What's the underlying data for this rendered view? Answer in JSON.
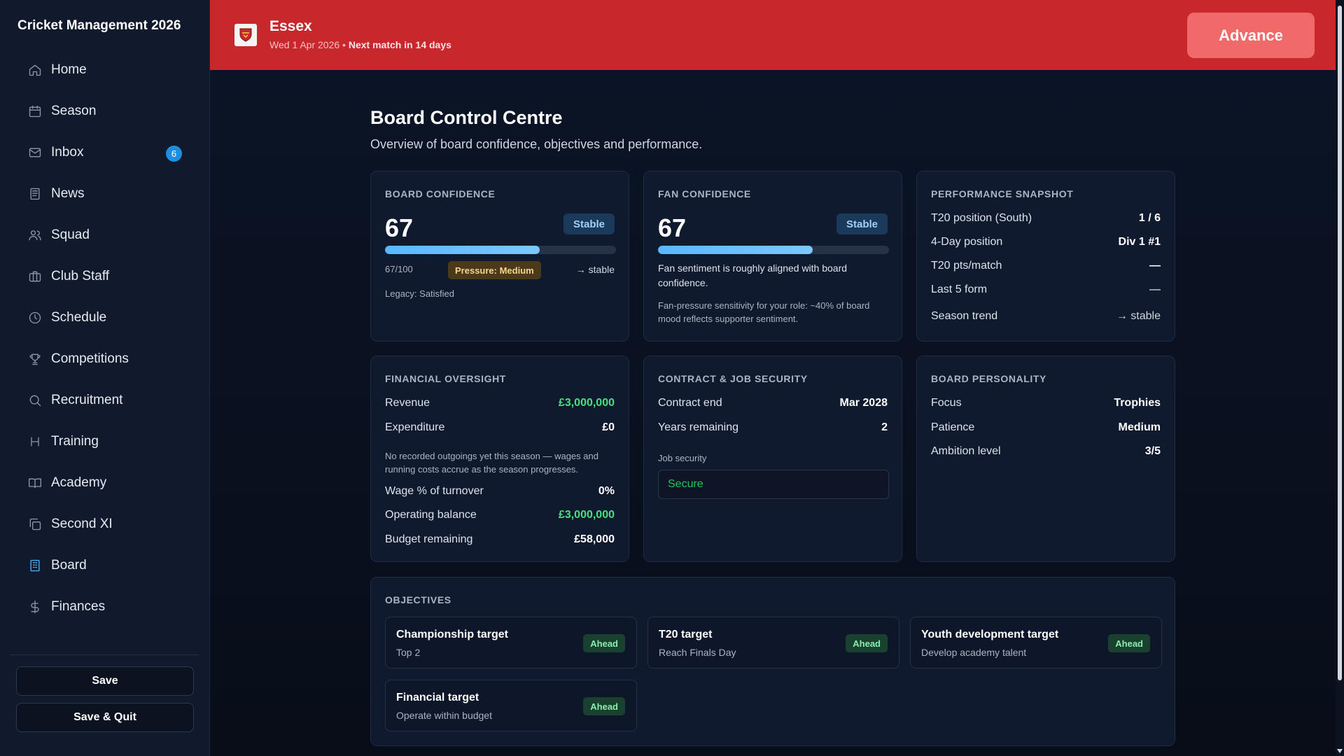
{
  "app": {
    "title": "Cricket Management 2026"
  },
  "sidebar": {
    "items": [
      {
        "label": "Home",
        "icon": "home-icon"
      },
      {
        "label": "Season",
        "icon": "calendar-icon"
      },
      {
        "label": "Inbox",
        "icon": "mail-icon",
        "badge": "6"
      },
      {
        "label": "News",
        "icon": "newspaper-icon"
      },
      {
        "label": "Squad",
        "icon": "users-icon"
      },
      {
        "label": "Club Staff",
        "icon": "briefcase-icon"
      },
      {
        "label": "Schedule",
        "icon": "clock-icon"
      },
      {
        "label": "Competitions",
        "icon": "trophy-icon"
      },
      {
        "label": "Recruitment",
        "icon": "search-icon"
      },
      {
        "label": "Training",
        "icon": "dumbbell-icon"
      },
      {
        "label": "Academy",
        "icon": "book-icon"
      },
      {
        "label": "Second XI",
        "icon": "copy-icon"
      },
      {
        "label": "Board",
        "icon": "building-icon",
        "active": true
      },
      {
        "label": "Finances",
        "icon": "dollar-icon"
      }
    ],
    "save_label": "Save",
    "save_quit_label": "Save & Quit"
  },
  "header": {
    "club": "Essex",
    "date": "Wed 1 Apr 2026",
    "separator": "•",
    "next_match": "Next match in 14 days",
    "advance_label": "Advance",
    "accent": "#c8282c"
  },
  "page": {
    "title": "Board Control Centre",
    "subtitle": "Overview of board confidence, objectives and performance."
  },
  "board_confidence": {
    "title": "BOARD CONFIDENCE",
    "value": "67",
    "status": "Stable",
    "progress": 0.67,
    "score": "67/100",
    "pressure": "Pressure: Medium",
    "trend": "→ stable",
    "legacy": "Legacy: Satisfied"
  },
  "fan_confidence": {
    "title": "FAN CONFIDENCE",
    "value": "67",
    "status": "Stable",
    "progress": 0.67,
    "note1": "Fan sentiment is roughly aligned with board confidence.",
    "note2": "Fan-pressure sensitivity for your role: ~40% of board mood reflects supporter sentiment."
  },
  "performance": {
    "title": "PERFORMANCE SNAPSHOT",
    "rows": [
      {
        "label": "T20 position (South)",
        "value": "1 / 6"
      },
      {
        "label": "4-Day position",
        "value": "Div 1 #1"
      },
      {
        "label": "T20 pts/match",
        "value": "—"
      },
      {
        "label": "Last 5 form",
        "value": "—"
      },
      {
        "label": "Season trend",
        "value": "→ stable"
      }
    ]
  },
  "financial": {
    "title": "FINANCIAL OVERSIGHT",
    "revenue_label": "Revenue",
    "revenue": "£3,000,000",
    "expenditure_label": "Expenditure",
    "expenditure": "£0",
    "note": "No recorded outgoings yet this season — wages and running costs accrue as the season progresses.",
    "wage_label": "Wage % of turnover",
    "wage": "0%",
    "operating_label": "Operating balance",
    "operating": "£3,000,000",
    "budget_label": "Budget remaining",
    "budget": "£58,000"
  },
  "contract": {
    "title": "CONTRACT & JOB SECURITY",
    "end_label": "Contract end",
    "end": "Mar 2028",
    "years_label": "Years remaining",
    "years": "2",
    "security_label": "Job security",
    "security": "Secure"
  },
  "personality": {
    "title": "BOARD PERSONALITY",
    "focus_label": "Focus",
    "focus": "Trophies",
    "patience_label": "Patience",
    "patience": "Medium",
    "ambition_label": "Ambition level",
    "ambition": "3/5"
  },
  "objectives": {
    "title": "OBJECTIVES",
    "items": [
      {
        "title": "Championship target",
        "sub": "Top 2",
        "status": "Ahead"
      },
      {
        "title": "T20 target",
        "sub": "Reach Finals Day",
        "status": "Ahead"
      },
      {
        "title": "Youth development target",
        "sub": "Develop academy talent",
        "status": "Ahead"
      },
      {
        "title": "Financial target",
        "sub": "Operate within budget",
        "status": "Ahead"
      }
    ]
  }
}
